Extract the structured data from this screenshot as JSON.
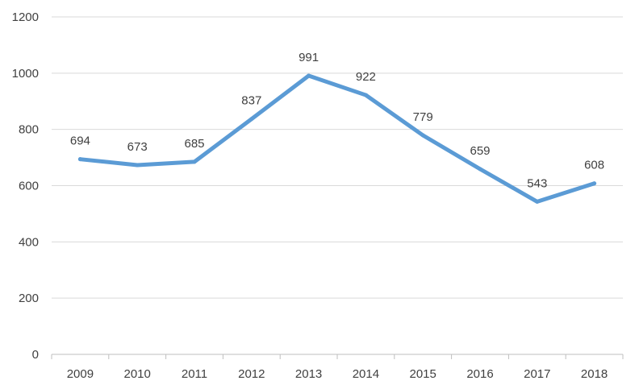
{
  "chart_data": {
    "type": "line",
    "title": "",
    "xlabel": "",
    "ylabel": "",
    "categories": [
      "2009",
      "2010",
      "2011",
      "2012",
      "2013",
      "2014",
      "2015",
      "2016",
      "2017",
      "2018"
    ],
    "series": [
      {
        "values": [
          694,
          673,
          685,
          837,
          991,
          922,
          779,
          659,
          543,
          608
        ],
        "color": "#5b9bd5"
      }
    ],
    "data_labels": [
      "694",
      "673",
      "685",
      "837",
      "991",
      "922",
      "779",
      "659",
      "543",
      "608"
    ],
    "ylim": [
      0,
      1200
    ],
    "y_ticks": [
      0,
      200,
      400,
      600,
      800,
      1000,
      1200
    ],
    "y_tick_labels": [
      "0",
      "200",
      "400",
      "600",
      "800",
      "1000",
      "1200"
    ],
    "grid": true,
    "legend": "none"
  }
}
